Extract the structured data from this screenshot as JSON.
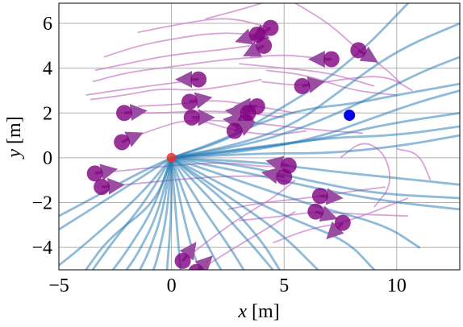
{
  "chart_data": {
    "type": "scatter",
    "title": "",
    "xlabel": "x [m]",
    "ylabel": "y [m]",
    "xlim": [
      -5,
      12.8
    ],
    "ylim": [
      -5,
      6.9
    ],
    "xticks": [
      -5,
      0,
      5,
      10
    ],
    "xtick_labels": [
      "−5",
      "0",
      "5",
      "10"
    ],
    "yticks": [
      -4,
      -2,
      0,
      2,
      4,
      6
    ],
    "ytick_labels": [
      "−4",
      "−2",
      "0",
      "2",
      "4",
      "6"
    ],
    "grid": true,
    "colors": {
      "robot_paths": "#1f77b4",
      "pedestrian": "#800080",
      "pedestrian_trails": "#c77dc7",
      "start": "#e8312a",
      "goal": "#0000ee"
    },
    "start": {
      "x": 0,
      "y": 0
    },
    "goal": {
      "x": 7.9,
      "y": 1.9
    },
    "pedestrians": [
      {
        "x": 4.4,
        "y": 5.8,
        "dx": -0.8,
        "dy": -0.5
      },
      {
        "x": 3.8,
        "y": 5.5,
        "dx": -0.9,
        "dy": -0.3
      },
      {
        "x": 4.1,
        "y": 5.0,
        "dx": -0.8,
        "dy": -0.4
      },
      {
        "x": 7.1,
        "y": 4.4,
        "dx": -0.9,
        "dy": 0.0
      },
      {
        "x": 8.3,
        "y": 4.8,
        "dx": 0.8,
        "dy": -0.5
      },
      {
        "x": 1.2,
        "y": 3.5,
        "dx": -1.0,
        "dy": 0.0
      },
      {
        "x": 5.8,
        "y": 3.2,
        "dx": 1.0,
        "dy": 0.2
      },
      {
        "x": 0.8,
        "y": 2.5,
        "dx": 1.0,
        "dy": 0.2
      },
      {
        "x": 3.8,
        "y": 2.3,
        "dx": -0.9,
        "dy": 0.0
      },
      {
        "x": -2.1,
        "y": 2.0,
        "dx": 1.0,
        "dy": 0.1
      },
      {
        "x": 0.9,
        "y": 1.8,
        "dx": 1.0,
        "dy": 0.0
      },
      {
        "x": 3.4,
        "y": 2.0,
        "dx": -0.9,
        "dy": 0.1
      },
      {
        "x": 3.3,
        "y": 1.6,
        "dx": -0.8,
        "dy": 0.1
      },
      {
        "x": 2.8,
        "y": 1.2,
        "dx": 0.9,
        "dy": 0.4
      },
      {
        "x": -2.2,
        "y": 0.7,
        "dx": 0.9,
        "dy": 0.4
      },
      {
        "x": 5.2,
        "y": -0.35,
        "dx": -0.9,
        "dy": 0.2
      },
      {
        "x": 5.0,
        "y": -0.85,
        "dx": -1.0,
        "dy": 0.2
      },
      {
        "x": -3.4,
        "y": -0.7,
        "dx": 1.0,
        "dy": 0.2
      },
      {
        "x": -3.1,
        "y": -1.3,
        "dx": 1.0,
        "dy": 0.1
      },
      {
        "x": 6.6,
        "y": -1.7,
        "dx": 1.0,
        "dy": -0.1
      },
      {
        "x": 6.4,
        "y": -2.4,
        "dx": 0.9,
        "dy": -0.3
      },
      {
        "x": 7.6,
        "y": -2.9,
        "dx": -0.6,
        "dy": -0.6
      },
      {
        "x": 0.5,
        "y": -4.6,
        "dx": 0.5,
        "dy": 0.7
      },
      {
        "x": 1.1,
        "y": -5.1,
        "dx": 0.5,
        "dy": 0.5
      }
    ],
    "pedestrian_trails": [
      [
        [
          -3.8,
          2.8
        ],
        [
          -2.5,
          3.0
        ],
        [
          -1.0,
          3.2
        ],
        [
          0.5,
          3.4
        ],
        [
          1.2,
          3.5
        ]
      ],
      [
        [
          -3.6,
          2.6
        ],
        [
          -2.0,
          2.8
        ],
        [
          -0.5,
          3.1
        ],
        [
          1.0,
          3.0
        ],
        [
          2.5,
          3.2
        ],
        [
          4.0,
          3.5
        ]
      ],
      [
        [
          -3.5,
          3.4
        ],
        [
          -2.0,
          3.8
        ],
        [
          -0.5,
          4.0
        ],
        [
          1.0,
          4.2
        ],
        [
          2.5,
          4.4
        ],
        [
          4.0,
          4.5
        ]
      ],
      [
        [
          -3.4,
          3.9
        ],
        [
          -2.0,
          4.2
        ],
        [
          0.0,
          4.6
        ],
        [
          2.0,
          4.8
        ],
        [
          3.5,
          5.0
        ]
      ],
      [
        [
          -3.0,
          4.5
        ],
        [
          -1.5,
          5.0
        ],
        [
          0.0,
          5.3
        ],
        [
          2.0,
          5.6
        ],
        [
          3.8,
          5.5
        ]
      ],
      [
        [
          -1.5,
          5.6
        ],
        [
          0.5,
          6.0
        ],
        [
          2.5,
          6.3
        ],
        [
          4.4,
          5.8
        ]
      ],
      [
        [
          1.5,
          6.2
        ],
        [
          3.0,
          6.6
        ],
        [
          4.0,
          6.9
        ]
      ],
      [
        [
          5.5,
          6.9
        ],
        [
          7.0,
          6.0
        ],
        [
          8.3,
          4.8
        ],
        [
          9.5,
          4.0
        ],
        [
          10.2,
          3.3
        ]
      ],
      [
        [
          3.5,
          4.5
        ],
        [
          5.0,
          4.6
        ],
        [
          6.0,
          4.5
        ],
        [
          7.1,
          4.4
        ]
      ],
      [
        [
          3.0,
          4.2
        ],
        [
          5.0,
          4.0
        ],
        [
          7.0,
          3.8
        ],
        [
          9.0,
          3.2
        ]
      ],
      [
        [
          4.0,
          3.4
        ],
        [
          5.8,
          3.2
        ],
        [
          7.5,
          3.5
        ],
        [
          9.5,
          3.7
        ],
        [
          10.7,
          3.0
        ]
      ],
      [
        [
          4.2,
          3.9
        ],
        [
          6.0,
          3.7
        ],
        [
          8.0,
          3.0
        ],
        [
          10.0,
          2.8
        ]
      ],
      [
        [
          -1.5,
          2.3
        ],
        [
          0.5,
          2.4
        ],
        [
          2.0,
          2.6
        ],
        [
          3.8,
          2.3
        ],
        [
          5.5,
          2.0
        ]
      ],
      [
        [
          -2.1,
          2.0
        ],
        [
          -0.5,
          2.0
        ],
        [
          1.5,
          2.1
        ],
        [
          3.4,
          2.0
        ],
        [
          5.0,
          1.8
        ]
      ],
      [
        [
          -2.2,
          0.7
        ],
        [
          -1.0,
          1.2
        ],
        [
          0.9,
          1.8
        ],
        [
          2.8,
          1.2
        ],
        [
          4.5,
          1.0
        ],
        [
          6.0,
          1.2
        ]
      ],
      [
        [
          1.0,
          1.7
        ],
        [
          3.3,
          1.6
        ],
        [
          5.0,
          1.4
        ],
        [
          7.0,
          1.2
        ],
        [
          8.5,
          1.1
        ]
      ],
      [
        [
          -3.4,
          -0.7
        ],
        [
          -1.5,
          -0.5
        ],
        [
          0.5,
          -0.3
        ],
        [
          2.5,
          -0.2
        ],
        [
          4.0,
          -0.4
        ],
        [
          5.2,
          -0.35
        ]
      ],
      [
        [
          -3.1,
          -1.3
        ],
        [
          -1.0,
          -1.1
        ],
        [
          1.0,
          -0.9
        ],
        [
          3.0,
          -0.8
        ],
        [
          5.0,
          -0.85
        ]
      ],
      [
        [
          2.5,
          -2.3
        ],
        [
          4.0,
          -2.0
        ],
        [
          6.0,
          -1.8
        ],
        [
          8.0,
          -1.5
        ],
        [
          9.5,
          -1.3
        ]
      ],
      [
        [
          3.0,
          -2.8
        ],
        [
          5.0,
          -2.6
        ],
        [
          6.4,
          -2.4
        ],
        [
          8.0,
          -2.5
        ],
        [
          10.5,
          -2.6
        ]
      ],
      [
        [
          4.5,
          -3.8
        ],
        [
          6.0,
          -3.2
        ],
        [
          7.6,
          -2.9
        ],
        [
          9.0,
          -2.4
        ],
        [
          10.5,
          -1.8
        ]
      ],
      [
        [
          0.5,
          -4.6
        ],
        [
          1.5,
          -3.8
        ],
        [
          3.0,
          -2.7
        ],
        [
          4.5,
          -1.8
        ],
        [
          5.5,
          -1.0
        ]
      ],
      [
        [
          1.1,
          -5.1
        ],
        [
          2.5,
          -4.2
        ],
        [
          4.0,
          -3.3
        ],
        [
          5.5,
          -2.4
        ]
      ],
      [
        [
          7.5,
          0.0
        ],
        [
          8.5,
          0.8
        ],
        [
          9.5,
          0.2
        ],
        [
          9.8,
          -1.2
        ],
        [
          9.0,
          -2.2
        ]
      ],
      [
        [
          10.0,
          0.4
        ],
        [
          11.0,
          0.2
        ],
        [
          11.5,
          -1.0
        ]
      ]
    ],
    "robot_paths": [
      [
        [
          0,
          0
        ],
        [
          -2.0,
          -1.3
        ],
        [
          -5.0,
          -3.2
        ]
      ],
      [
        [
          0,
          0
        ],
        [
          -1.5,
          -1.8
        ],
        [
          -4.0,
          -4.0
        ],
        [
          -5.0,
          -4.8
        ]
      ],
      [
        [
          0,
          0
        ],
        [
          -1.2,
          -2.0
        ],
        [
          -2.5,
          -3.6
        ],
        [
          -3.5,
          -5.0
        ]
      ],
      [
        [
          0,
          0
        ],
        [
          -0.8,
          -2.3
        ],
        [
          -2.0,
          -4.2
        ],
        [
          -2.6,
          -5.0
        ]
      ],
      [
        [
          0,
          0
        ],
        [
          -0.6,
          -2.5
        ],
        [
          -1.5,
          -4.3
        ],
        [
          -2.0,
          -5.0
        ]
      ],
      [
        [
          0,
          0
        ],
        [
          -0.4,
          -2.5
        ],
        [
          -1.0,
          -4.2
        ],
        [
          -1.4,
          -5.0
        ]
      ],
      [
        [
          0,
          0
        ],
        [
          -0.2,
          -2.6
        ],
        [
          -0.6,
          -4.4
        ],
        [
          -0.8,
          -5.0
        ]
      ],
      [
        [
          0,
          0
        ],
        [
          0.0,
          -2.5
        ],
        [
          -0.2,
          -5.0
        ]
      ],
      [
        [
          0,
          0
        ],
        [
          0.2,
          -2.6
        ],
        [
          0.4,
          -5.0
        ]
      ],
      [
        [
          0,
          0
        ],
        [
          0.5,
          -2.5
        ],
        [
          1.0,
          -4.4
        ],
        [
          1.3,
          -5.0
        ]
      ],
      [
        [
          0,
          0
        ],
        [
          0.8,
          -2.3
        ],
        [
          1.8,
          -4.3
        ],
        [
          2.2,
          -5.0
        ]
      ],
      [
        [
          0,
          0
        ],
        [
          1.2,
          -2.0
        ],
        [
          2.6,
          -4.0
        ],
        [
          3.2,
          -5.0
        ]
      ],
      [
        [
          0,
          0
        ],
        [
          1.6,
          -1.7
        ],
        [
          3.5,
          -3.8
        ],
        [
          4.5,
          -5.0
        ]
      ],
      [
        [
          0,
          0
        ],
        [
          2.2,
          -1.5
        ],
        [
          4.8,
          -3.3
        ],
        [
          6.5,
          -5.0
        ]
      ],
      [
        [
          0,
          0
        ],
        [
          3.0,
          -1.6
        ],
        [
          5.5,
          -2.8
        ],
        [
          7.8,
          -3.7
        ],
        [
          9.0,
          -5.0
        ]
      ],
      [
        [
          0,
          0
        ],
        [
          3.5,
          -1.2
        ],
        [
          6.5,
          -2.2
        ],
        [
          9.5,
          -3.0
        ],
        [
          11.0,
          -4.0
        ]
      ],
      [
        [
          0,
          0
        ],
        [
          4.0,
          -0.8
        ],
        [
          7.0,
          -1.5
        ],
        [
          10.0,
          -2.0
        ],
        [
          12.8,
          -2.3
        ]
      ],
      [
        [
          0,
          0
        ],
        [
          4.0,
          -0.2
        ],
        [
          7.0,
          -0.6
        ],
        [
          10.0,
          -0.9
        ],
        [
          12.8,
          -1.2
        ]
      ],
      [
        [
          0,
          0
        ],
        [
          4.0,
          0.2
        ],
        [
          7.0,
          0.2
        ],
        [
          10.0,
          0.5
        ],
        [
          12.8,
          1.0
        ]
      ],
      [
        [
          0,
          0
        ],
        [
          3.5,
          0.4
        ],
        [
          6.5,
          0.8
        ],
        [
          9.5,
          1.5
        ],
        [
          12.8,
          2.0
        ]
      ],
      [
        [
          0,
          0
        ],
        [
          4.0,
          0.5
        ],
        [
          7.0,
          0.9
        ],
        [
          10.0,
          1.0
        ],
        [
          12.8,
          1.4
        ]
      ],
      [
        [
          0,
          0
        ],
        [
          3.5,
          0.3
        ],
        [
          6.5,
          0.9
        ],
        [
          9.0,
          1.8
        ],
        [
          11.0,
          2.5
        ],
        [
          12.8,
          3.0
        ]
      ],
      [
        [
          0,
          0
        ],
        [
          3.5,
          0.6
        ],
        [
          6.0,
          1.4
        ],
        [
          8.5,
          2.5
        ],
        [
          11.0,
          3.8
        ],
        [
          12.8,
          4.5
        ]
      ],
      [
        [
          0,
          0
        ],
        [
          3.0,
          0.6
        ],
        [
          5.5,
          1.5
        ],
        [
          7.5,
          3.0
        ],
        [
          10.0,
          4.8
        ],
        [
          12.8,
          6.0
        ]
      ],
      [
        [
          0,
          0
        ],
        [
          2.5,
          0.8
        ],
        [
          4.5,
          2.0
        ],
        [
          6.5,
          3.2
        ],
        [
          8.5,
          4.8
        ],
        [
          10.5,
          6.9
        ]
      ],
      [
        [
          0,
          0
        ],
        [
          2.0,
          0.7
        ],
        [
          4.0,
          1.6
        ],
        [
          6.0,
          2.2
        ],
        [
          8.0,
          2.4
        ],
        [
          10.0,
          2.8
        ],
        [
          12.8,
          3.3
        ]
      ],
      [
        [
          0,
          0
        ],
        [
          -1.5,
          -0.7
        ],
        [
          -3.5,
          -1.8
        ],
        [
          -5.0,
          -2.6
        ]
      ],
      [
        [
          0,
          0
        ],
        [
          2.5,
          -2.0
        ],
        [
          4.0,
          -3.7
        ],
        [
          4.8,
          -5.0
        ]
      ],
      [
        [
          0,
          0
        ],
        [
          3.0,
          -0.3
        ],
        [
          6.0,
          -1.0
        ],
        [
          9.0,
          -1.6
        ],
        [
          12.8,
          -1.8
        ]
      ],
      [
        [
          0,
          0
        ],
        [
          -0.7,
          -2.0
        ],
        [
          -2.8,
          -3.6
        ],
        [
          -3.8,
          -5.0
        ]
      ]
    ]
  }
}
